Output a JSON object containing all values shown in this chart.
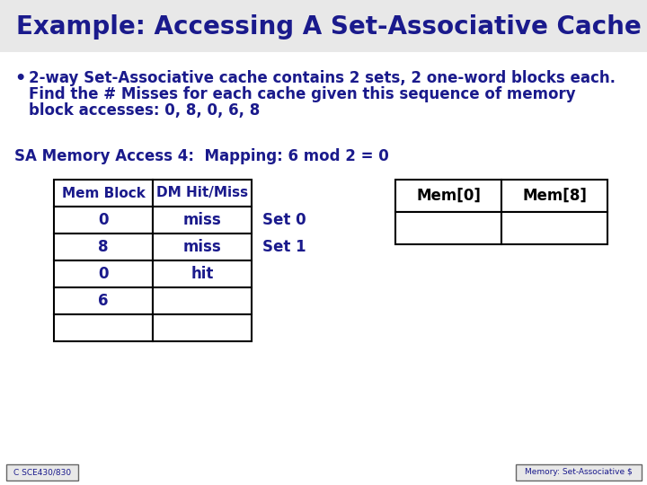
{
  "title": "Example: Accessing A Set-Associative Cache",
  "title_color": "#1a1a8c",
  "title_fontsize": 20,
  "bg_color": "#e8e8e8",
  "body_color": "#ffffff",
  "bullet_line1": "2-way Set-Associative cache contains 2 sets, 2 one-word blocks each.",
  "bullet_line2": "Find the # Misses for each cache given this sequence of memory",
  "bullet_line3": "block accesses: 0, 8, 0, 6, 8",
  "sa_label": "SA Memory Access 4:  Mapping: 6 mod 2 = 0",
  "text_color": "#1a1a8c",
  "text_fontsize": 12,
  "table_header": [
    "Mem Block",
    "DM Hit/Miss"
  ],
  "table_rows": [
    [
      "0",
      "miss"
    ],
    [
      "8",
      "miss"
    ],
    [
      "0",
      "hit"
    ],
    [
      "6",
      ""
    ],
    [
      "",
      ""
    ]
  ],
  "set_labels": [
    "Set 0",
    "Set 1"
  ],
  "cache_col_headers": [
    "Mem[0]",
    "Mem[8]"
  ],
  "footer_left": "C SCE430/830",
  "footer_right": "Memory: Set-Associative $"
}
